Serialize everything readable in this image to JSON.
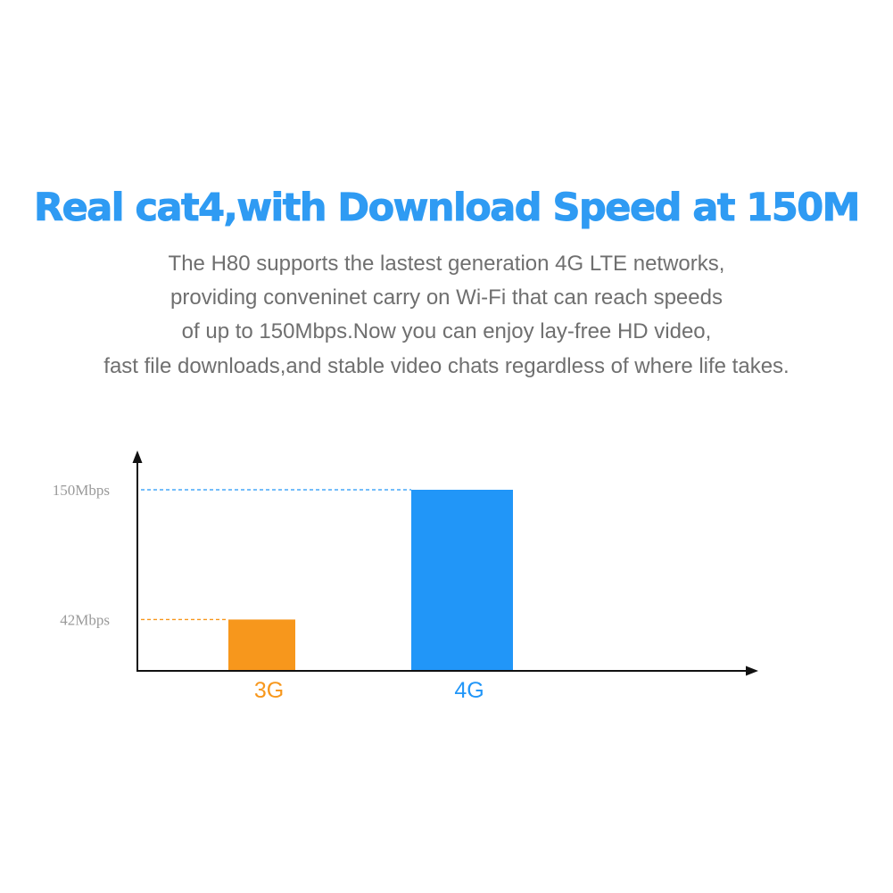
{
  "headline": "Real cat4,with Download Speed at 150M",
  "description": [
    "The H80 supports the lastest generation 4G LTE networks,",
    "providing conveninet carry on Wi-Fi that can reach speeds",
    "of up to 150Mbps.Now you can enjoy lay-free HD video,",
    "fast file downloads,and stable video chats regardless of where life takes."
  ],
  "chart_data": {
    "type": "bar",
    "categories": [
      "3G",
      "4G"
    ],
    "values": [
      42,
      150
    ],
    "value_labels": [
      "42Mbps",
      "150Mbps"
    ],
    "colors": [
      "#f7971c",
      "#2196f8"
    ],
    "ylim": [
      0,
      150
    ],
    "grid": false,
    "guide_lines": "dashed"
  }
}
